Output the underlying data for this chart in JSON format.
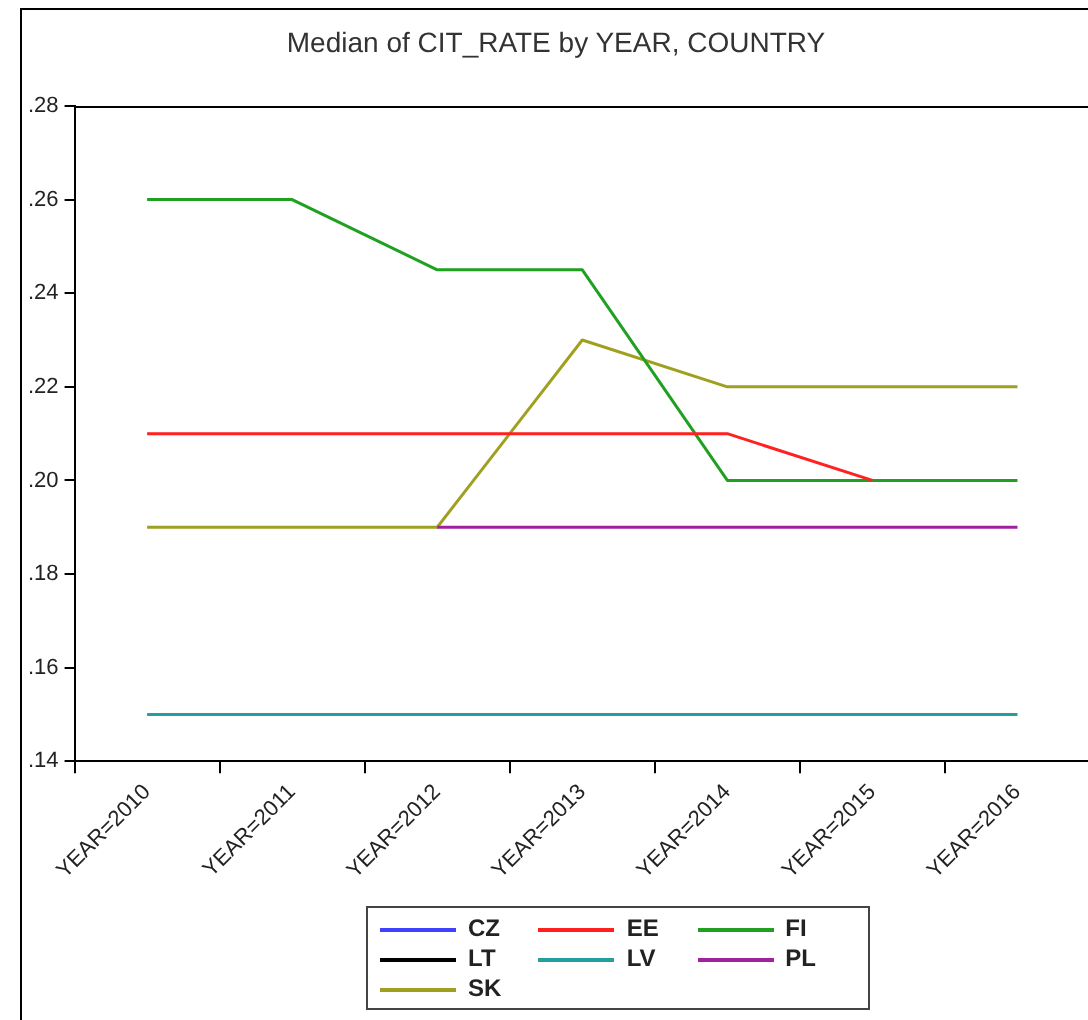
{
  "chart_data": {
    "type": "line",
    "title": "Median of CIT_RATE by YEAR, COUNTRY",
    "categories": [
      "YEAR=2010",
      "YEAR=2011",
      "YEAR=2012",
      "YEAR=2013",
      "YEAR=2014",
      "YEAR=2015",
      "YEAR=2016"
    ],
    "series": [
      {
        "name": "CZ",
        "color": "#4040ff",
        "values": [
          null,
          null,
          null,
          null,
          null,
          null,
          null
        ]
      },
      {
        "name": "EE",
        "color": "#ff2020",
        "values": [
          0.21,
          0.21,
          0.21,
          0.21,
          0.21,
          0.2,
          null
        ]
      },
      {
        "name": "FI",
        "color": "#20a020",
        "values": [
          0.26,
          0.26,
          0.245,
          0.245,
          0.2,
          0.2,
          0.2
        ]
      },
      {
        "name": "LT",
        "color": "#000000",
        "values": [
          null,
          null,
          null,
          null,
          null,
          null,
          null
        ]
      },
      {
        "name": "LV",
        "color": "#20a0a0",
        "values": [
          0.15,
          0.15,
          0.15,
          0.15,
          0.15,
          0.15,
          0.15
        ]
      },
      {
        "name": "PL",
        "color": "#a020a0",
        "values": [
          null,
          null,
          0.19,
          0.19,
          0.19,
          0.19,
          0.19
        ]
      },
      {
        "name": "SK",
        "color": "#a0a020",
        "values": [
          0.19,
          0.19,
          0.19,
          0.23,
          0.22,
          0.22,
          0.22
        ]
      }
    ],
    "ylim": [
      0.14,
      0.28
    ],
    "yticks": [
      {
        "value": 0.14,
        "label": ".14"
      },
      {
        "value": 0.16,
        "label": ".16"
      },
      {
        "value": 0.18,
        "label": ".18"
      },
      {
        "value": 0.2,
        "label": ".20"
      },
      {
        "value": 0.22,
        "label": ".22"
      },
      {
        "value": 0.24,
        "label": ".24"
      },
      {
        "value": 0.26,
        "label": ".26"
      },
      {
        "value": 0.28,
        "label": ".28"
      }
    ],
    "grid": false,
    "legend": "bottom",
    "marker": "none",
    "line_style": "solid"
  }
}
